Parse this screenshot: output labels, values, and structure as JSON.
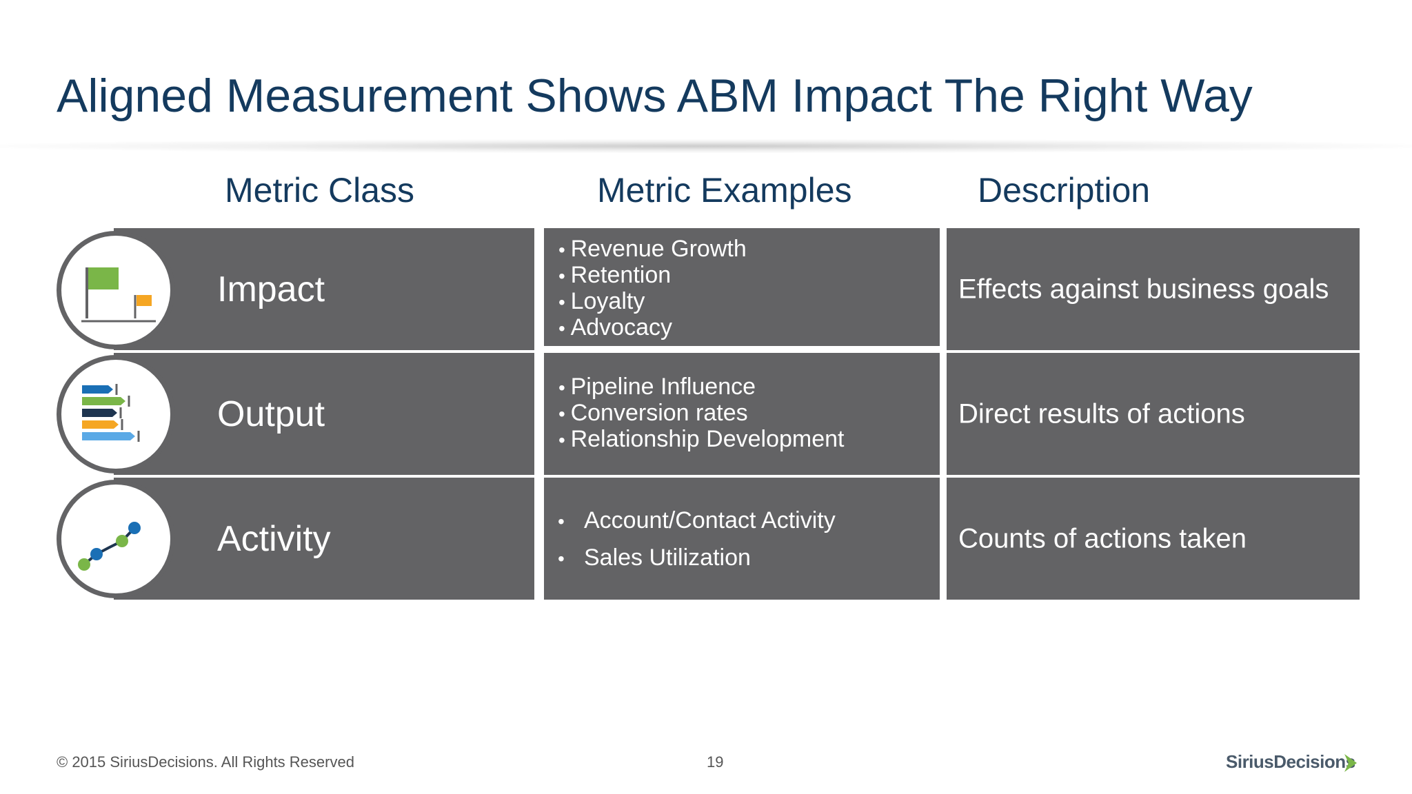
{
  "title": "Aligned Measurement Shows ABM Impact The Right Way",
  "headers": {
    "metric_class": "Metric Class",
    "metric_examples": "Metric Examples",
    "description": "Description"
  },
  "rows": [
    {
      "class": "Impact",
      "icon": "flags-icon",
      "examples": [
        "Revenue Growth",
        "Retention",
        "Loyalty",
        "Advocacy"
      ],
      "description": "Effects against business goals"
    },
    {
      "class": "Output",
      "icon": "bar-arrows-icon",
      "examples": [
        "Pipeline Influence",
        "Conversion rates",
        "Relationship Development"
      ],
      "description": "Direct results of actions"
    },
    {
      "class": "Activity",
      "icon": "line-trend-icon",
      "examples": [
        "Account/Contact Activity",
        "Sales Utilization"
      ],
      "description": "Counts of actions taken"
    }
  ],
  "footer": {
    "copyright": "© 2015 SiriusDecisions. All Rights Reserved",
    "page_number": "19",
    "logo": "SiriusDecisions"
  },
  "colors": {
    "title": "#143a5e",
    "cell": "#636365",
    "green": "#7ab648",
    "orange": "#f5a623",
    "blue": "#1a6fb5",
    "light_blue": "#5aa9e6",
    "navy": "#1e3550"
  }
}
